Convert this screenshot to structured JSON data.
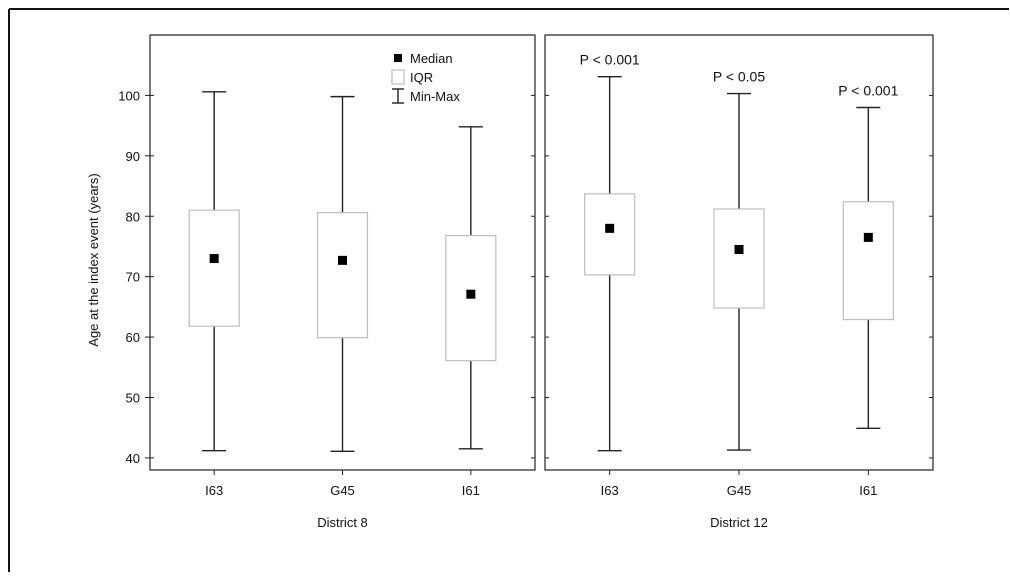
{
  "chart_data": {
    "type": "boxplot",
    "ylabel": "Age at the index event (years)",
    "ylim": [
      38,
      110
    ],
    "yticks": [
      40,
      50,
      60,
      70,
      80,
      90,
      100
    ],
    "legend": {
      "placement": "top-right of first panel",
      "entries": [
        {
          "label": "Median",
          "symbol": "square"
        },
        {
          "label": "IQR",
          "symbol": "box"
        },
        {
          "label": "Min-Max",
          "symbol": "whisker"
        }
      ]
    },
    "panels": [
      {
        "group_label": "District 8",
        "categories": [
          "I63",
          "G45",
          "I61"
        ],
        "boxes": [
          {
            "category": "I63",
            "min": 41.2,
            "q1": 61.8,
            "median": 73.0,
            "q3": 81.0,
            "max": 100.6,
            "pvalue": ""
          },
          {
            "category": "G45",
            "min": 41.1,
            "q1": 59.9,
            "median": 72.7,
            "q3": 80.6,
            "max": 99.8,
            "pvalue": ""
          },
          {
            "category": "I61",
            "min": 41.5,
            "q1": 56.1,
            "median": 67.1,
            "q3": 76.8,
            "max": 94.8,
            "pvalue": ""
          }
        ]
      },
      {
        "group_label": "District 12",
        "categories": [
          "I63",
          "G45",
          "I61"
        ],
        "boxes": [
          {
            "category": "I63",
            "min": 41.2,
            "q1": 70.3,
            "median": 78.0,
            "q3": 83.7,
            "max": 103.1,
            "pvalue": "P < 0.001"
          },
          {
            "category": "G45",
            "min": 41.3,
            "q1": 64.8,
            "median": 74.5,
            "q3": 81.2,
            "max": 100.3,
            "pvalue": "P < 0.05"
          },
          {
            "category": "I61",
            "min": 44.9,
            "q1": 62.9,
            "median": 76.5,
            "q3": 82.4,
            "max": 98.0,
            "pvalue": "P < 0.001"
          }
        ]
      }
    ],
    "grid": false
  }
}
